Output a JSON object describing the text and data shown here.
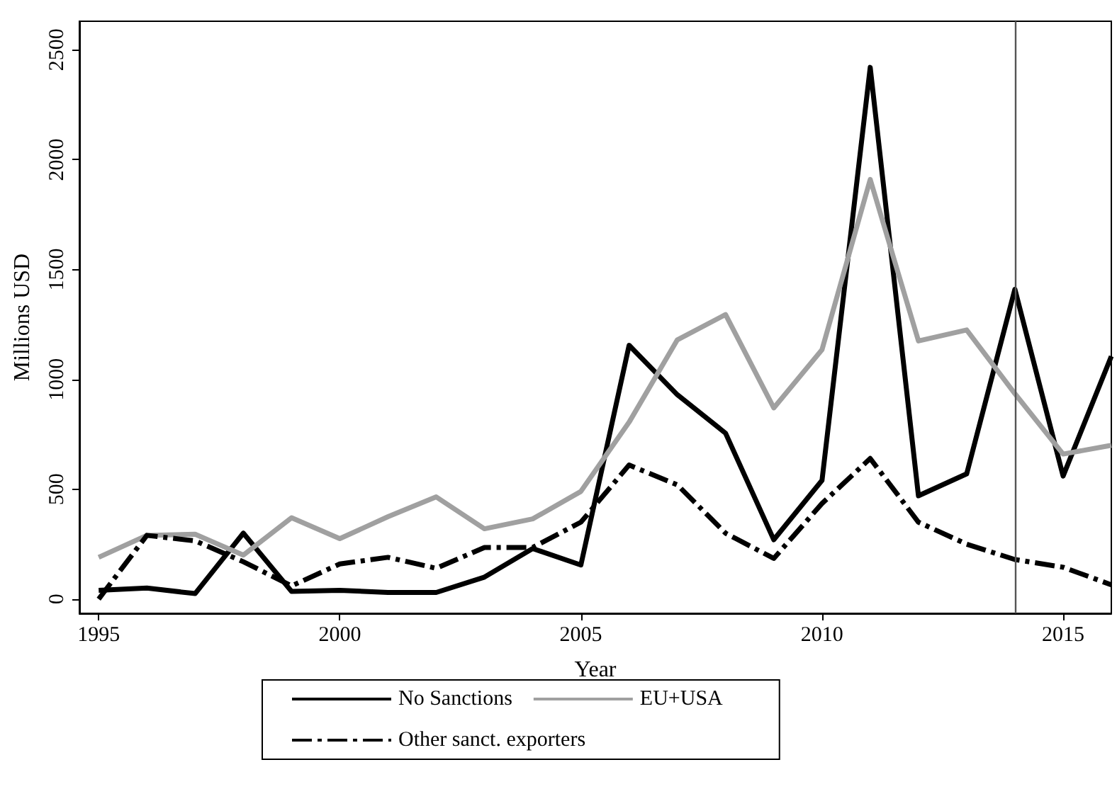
{
  "chart_data": {
    "type": "line",
    "xlabel": "Year",
    "ylabel": "Millions USD",
    "x": [
      1995,
      1996,
      1997,
      1998,
      1999,
      2000,
      2001,
      2002,
      2003,
      2004,
      2005,
      2006,
      2007,
      2008,
      2009,
      2010,
      2011,
      2012,
      2013,
      2014,
      2015,
      2016
    ],
    "series": [
      {
        "name": "No Sanctions",
        "color": "#000000",
        "line_style": "solid",
        "values": [
          40,
          50,
          25,
          300,
          35,
          40,
          30,
          30,
          100,
          230,
          155,
          1155,
          930,
          755,
          270,
          540,
          2420,
          470,
          570,
          1410,
          560,
          1105
        ]
      },
      {
        "name": "EU+USA",
        "color": "#a0a0a0",
        "line_style": "solid",
        "values": [
          190,
          290,
          295,
          200,
          370,
          275,
          375,
          465,
          320,
          365,
          490,
          805,
          1180,
          1295,
          870,
          1135,
          1910,
          1175,
          1225,
          935,
          660,
          700
        ]
      },
      {
        "name": "Other sanct. exporters",
        "color": "#000000",
        "line_style": "dashdot",
        "values": [
          0,
          290,
          265,
          170,
          60,
          160,
          190,
          140,
          235,
          235,
          350,
          610,
          520,
          300,
          185,
          435,
          640,
          350,
          250,
          180,
          145,
          65
        ]
      }
    ],
    "xlim": [
      1994.6,
      2016
    ],
    "xticks": [
      1995,
      2000,
      2005,
      2010,
      2015
    ],
    "ylim": [
      -65,
      2630
    ],
    "yticks": [
      0,
      500,
      1000,
      1500,
      2000,
      2500
    ],
    "ref_lines": [
      {
        "axis": "x",
        "value": 2014,
        "color": "#555555"
      }
    ],
    "grid": false,
    "legend": "bottom",
    "marker": "none"
  }
}
